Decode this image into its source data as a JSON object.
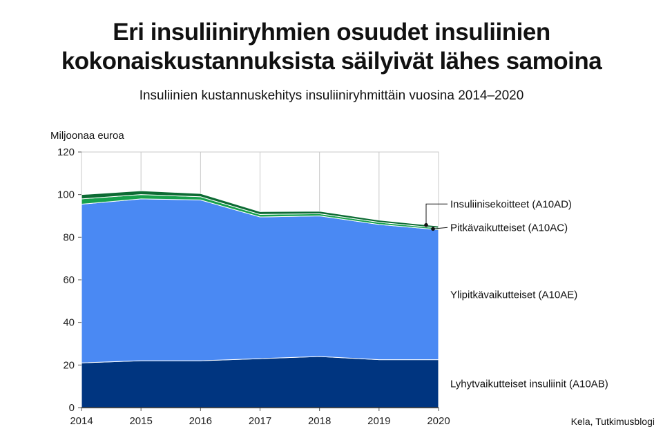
{
  "title_lines": [
    "Eri insuliiniryhmien osuudet insuliinien",
    "kokonaiskustannuksista säilyivät lähes samoina"
  ],
  "subtitle": "Insuliinien kustannuskehitys insuliiniryhmittäin vuosina 2014–2020",
  "source": "Kela, Tutkimusblogi",
  "chart_data": {
    "type": "area",
    "stacked": true,
    "ylabel": "Miljoonaa euroa",
    "xlabel": "",
    "ylim": [
      0,
      120
    ],
    "yticks": [
      0,
      20,
      40,
      60,
      80,
      100,
      120
    ],
    "grid": "vertical",
    "legend": "direct labels at right",
    "x": [
      "2014",
      "2015",
      "2016",
      "2017",
      "2018",
      "2019",
      "2020"
    ],
    "series": [
      {
        "name": "Lyhytvaikutteiset insuliinit (A10AB)",
        "color": "#003580",
        "values": [
          21,
          22,
          22,
          23,
          24,
          22.5,
          22.5
        ]
      },
      {
        "name": "Ylipitkävaikutteiset (A10AE)",
        "color": "#4a89f3",
        "values": [
          74.5,
          76,
          75.5,
          66.5,
          66,
          63.5,
          61
        ]
      },
      {
        "name": "Pitkävaikutteiset (A10AC)",
        "color": "#17a24d",
        "values": [
          2.5,
          2,
          1.5,
          1.2,
          1.0,
          1.0,
          0.8
        ]
      },
      {
        "name": "Insuliinisekoitteet (A10AD)",
        "color": "#0c6b33",
        "values": [
          2,
          1.8,
          1.5,
          1.3,
          1.2,
          1.0,
          0.9
        ]
      }
    ]
  }
}
